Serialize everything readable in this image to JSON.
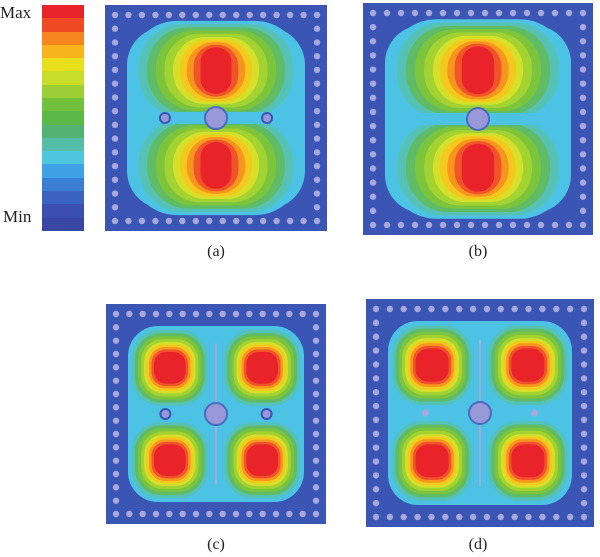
{
  "colorbar": {
    "max_label": "Max",
    "min_label": "Min",
    "colors": [
      "#e8232a",
      "#f04a22",
      "#f5861f",
      "#f7b51b",
      "#eadf1d",
      "#c8dc2a",
      "#9ccf35",
      "#72c13c",
      "#5cb848",
      "#54b372",
      "#56bda9",
      "#4dc7dd",
      "#3fa2e6",
      "#3a7fd4",
      "#3a62c0",
      "#3b4fb0",
      "#3a46a3"
    ]
  },
  "panels": [
    {
      "id": "a",
      "caption": "(a)",
      "mode": "two-lobes",
      "center_rod": true,
      "side_rods": true,
      "slot": false
    },
    {
      "id": "b",
      "caption": "(b)",
      "mode": "two-lobes",
      "center_rod": true,
      "side_rods": false,
      "slot": false
    },
    {
      "id": "c",
      "caption": "(c)",
      "mode": "four-lobes",
      "center_rod": true,
      "side_rods": true,
      "slot": true
    },
    {
      "id": "d",
      "caption": "(d)",
      "mode": "four-lobes",
      "center_rod": true,
      "side_rods": false,
      "slot": true
    }
  ]
}
